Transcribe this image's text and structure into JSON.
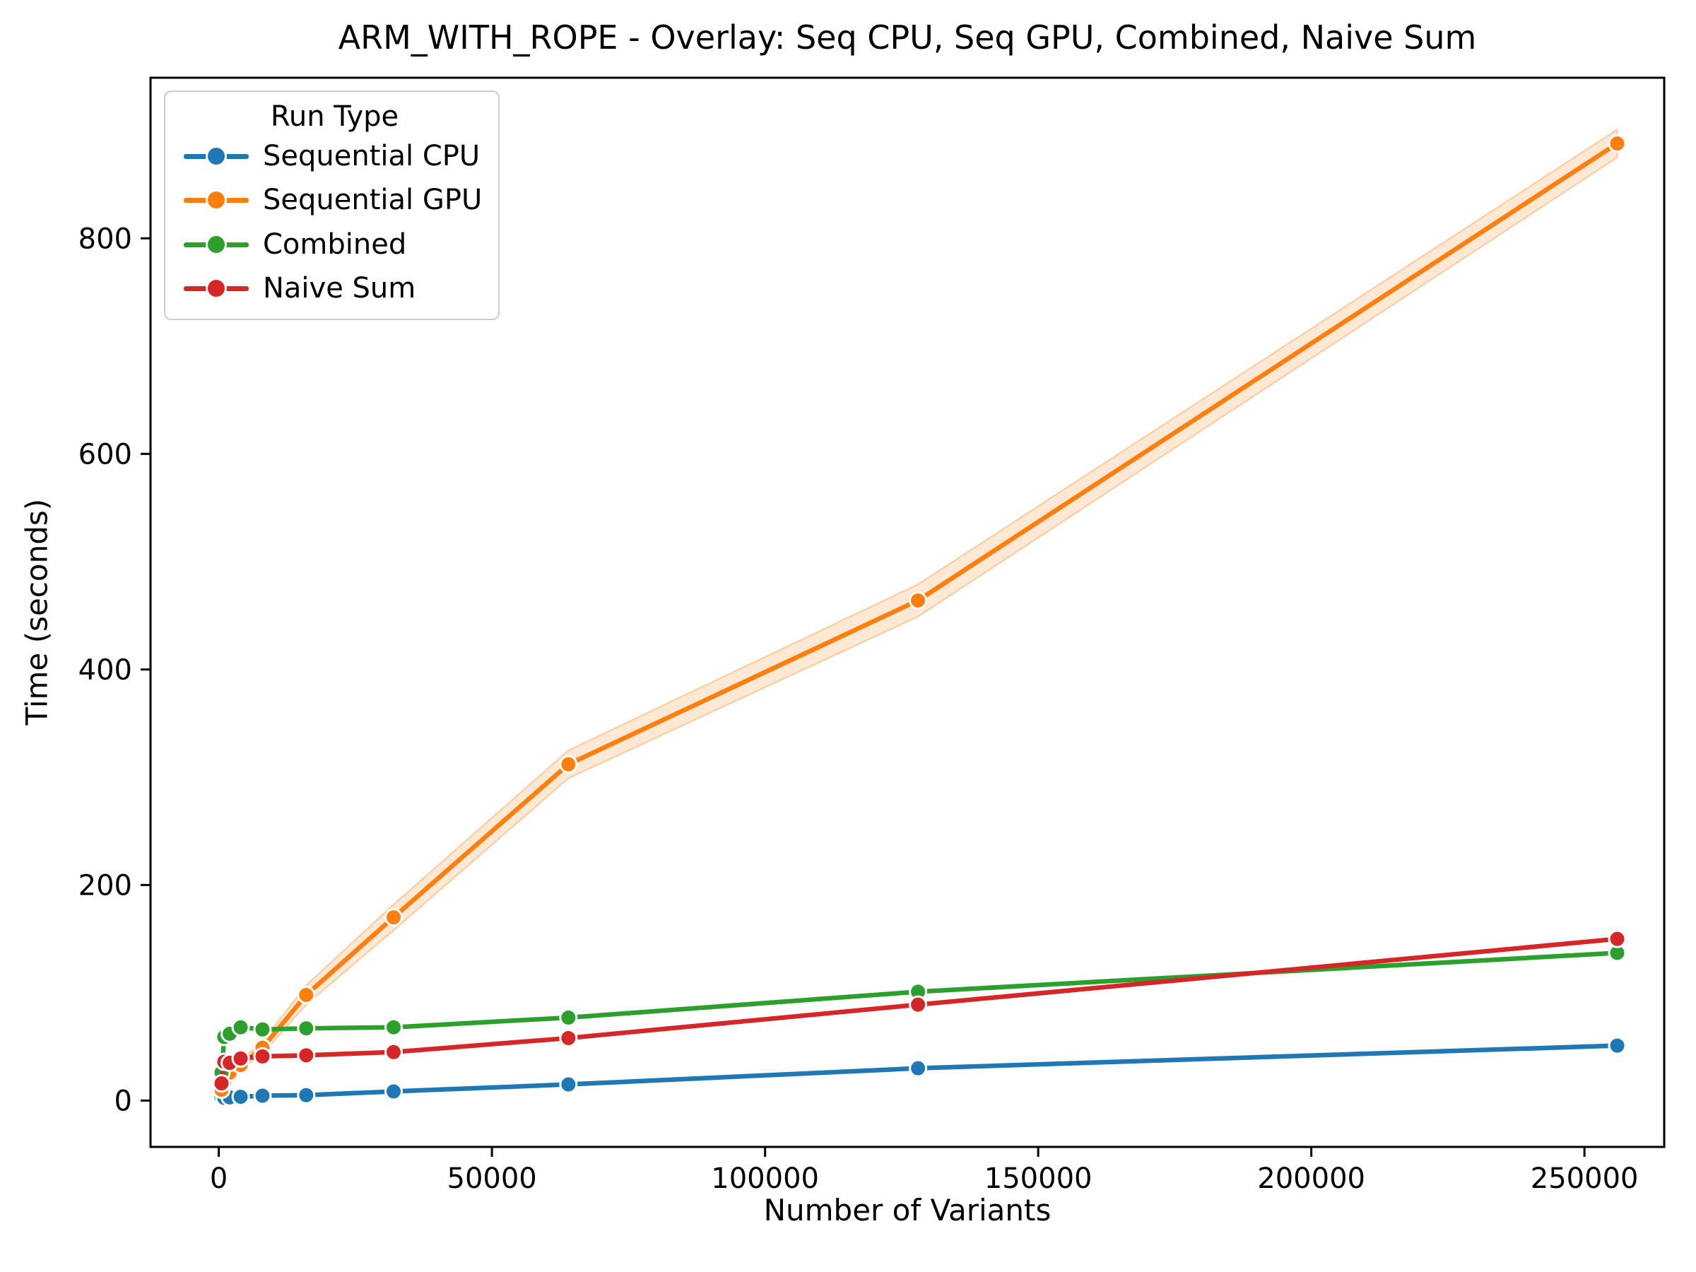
{
  "figure": {
    "background": "#ffffff"
  },
  "chart_data": {
    "type": "line",
    "title": "ARM_WITH_ROPE - Overlay: Seq CPU, Seq GPU, Combined, Naive Sum",
    "xlabel": "Number of Variants",
    "ylabel": "Time (seconds)",
    "x": [
      500,
      1000,
      2000,
      4000,
      8000,
      16000,
      32000,
      64000,
      128000,
      256000
    ],
    "series": [
      {
        "name": "Sequential CPU",
        "color": "#1f77b4",
        "values": [
          3,
          2.5,
          3,
          3.5,
          4.5,
          5,
          8.5,
          15,
          30,
          51
        ]
      },
      {
        "name": "Sequential GPU",
        "color": "#ff7f0e",
        "values": [
          10,
          17,
          26,
          33,
          49,
          98,
          170,
          312,
          464,
          888
        ],
        "band_low": [
          8,
          14,
          23,
          29,
          43,
          89,
          158,
          299,
          449,
          875
        ],
        "band_high": [
          12,
          20,
          29,
          37,
          55,
          107,
          182,
          325,
          479,
          901
        ],
        "band_fill_opacity": 0.18
      },
      {
        "name": "Combined",
        "color": "#2ca02c",
        "values": [
          26,
          59,
          62,
          68,
          66,
          67,
          68,
          77,
          101,
          137
        ]
      },
      {
        "name": "Naive Sum",
        "color": "#d62728",
        "values": [
          16,
          36,
          35,
          39,
          41,
          42,
          45,
          58,
          89,
          150
        ]
      }
    ],
    "x_ticks": [
      0,
      50000,
      100000,
      150000,
      200000,
      250000
    ],
    "y_ticks": [
      0,
      200,
      400,
      600,
      800
    ],
    "xlim": [
      -12500,
      264600
    ],
    "ylim": [
      -43,
      949
    ],
    "grid": false,
    "legend": {
      "title": "Run Type",
      "position": "upper left"
    },
    "axis_color": "#000000",
    "marker_edge_color": "#ffffff"
  }
}
